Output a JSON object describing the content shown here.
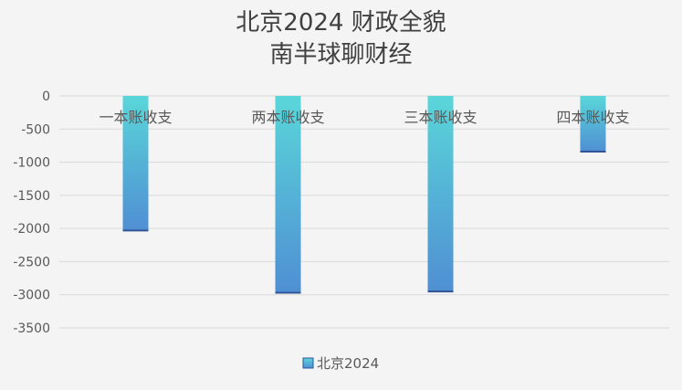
{
  "chart_data": {
    "type": "bar",
    "title": "北京2024 财政全貌",
    "subtitle": "南半球聊财经",
    "categories": [
      "一本账收支",
      "两本账收支",
      "三本账收支",
      "四本账收支"
    ],
    "series": [
      {
        "name": "北京2024",
        "values": [
          -2030,
          -2970,
          -2950,
          -840
        ]
      }
    ],
    "ylim": [
      -3500,
      0
    ],
    "yticks": [
      0,
      -500,
      -1000,
      -1500,
      -2000,
      -2500,
      -3000,
      -3500
    ],
    "grid": true,
    "legend": "bottom-center",
    "colors": {
      "bar_top": "#5ad6d9",
      "bar_bottom": "#4f8fd3",
      "bar_edge": "#2f5597",
      "grid": "#d9d9d9",
      "axis_text": "#595959"
    }
  }
}
